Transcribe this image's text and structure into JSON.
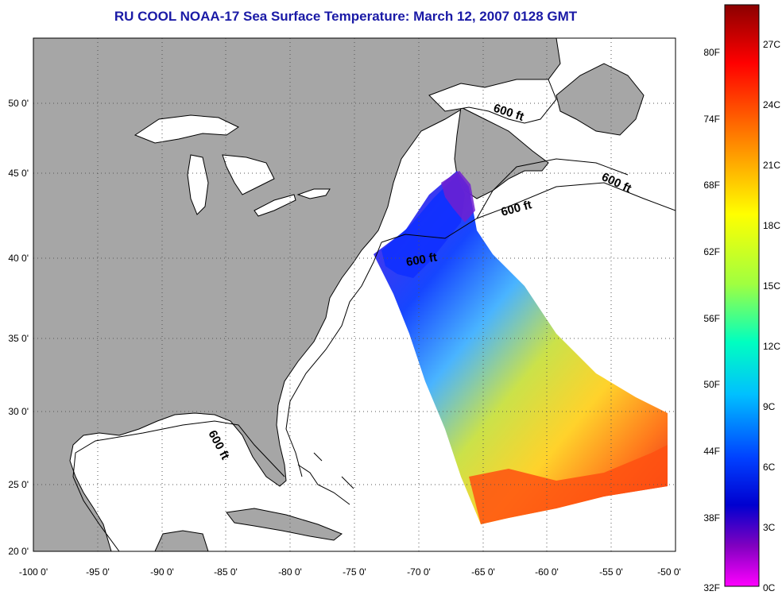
{
  "title": "RU COOL  NOAA-17  Sea Surface Temperature:  March 12, 2007 0128 GMT",
  "map": {
    "lon_ticks": [
      "-100 0'",
      "-95 0'",
      "-90 0'",
      "-85 0'",
      "-80 0'",
      "-75 0'",
      "-70 0'",
      "-65 0'",
      "-60 0'",
      "-55 0'",
      "-50 0'"
    ],
    "lat_ticks": [
      "50 0'",
      "45 0'",
      "40 0'",
      "35 0'",
      "30 0'",
      "25 0'",
      "20 0'"
    ],
    "isobath_labels": [
      "600 ft",
      "600 ft",
      "600 ft",
      "600 ft",
      "600 ft"
    ],
    "colors": {
      "land": "#a6a6a6",
      "ocean": "#ffffff",
      "grid": "#555555",
      "coast": "#000000"
    }
  },
  "colorbar": {
    "fahrenheit_labels": [
      "80F",
      "74F",
      "68F",
      "62F",
      "56F",
      "50F",
      "44F",
      "38F",
      "32F"
    ],
    "celsius_labels": [
      "27C",
      "24C",
      "21C",
      "18C",
      "15C",
      "12C",
      "9C",
      "6C",
      "3C",
      "0C"
    ],
    "colors_top_to_bottom": [
      "#8b0000",
      "#ff0000",
      "#ff7700",
      "#ffff00",
      "#a0ff40",
      "#00ffc0",
      "#00c0ff",
      "#0040ff",
      "#0000d0",
      "#8000c0",
      "#ff00ff"
    ]
  }
}
